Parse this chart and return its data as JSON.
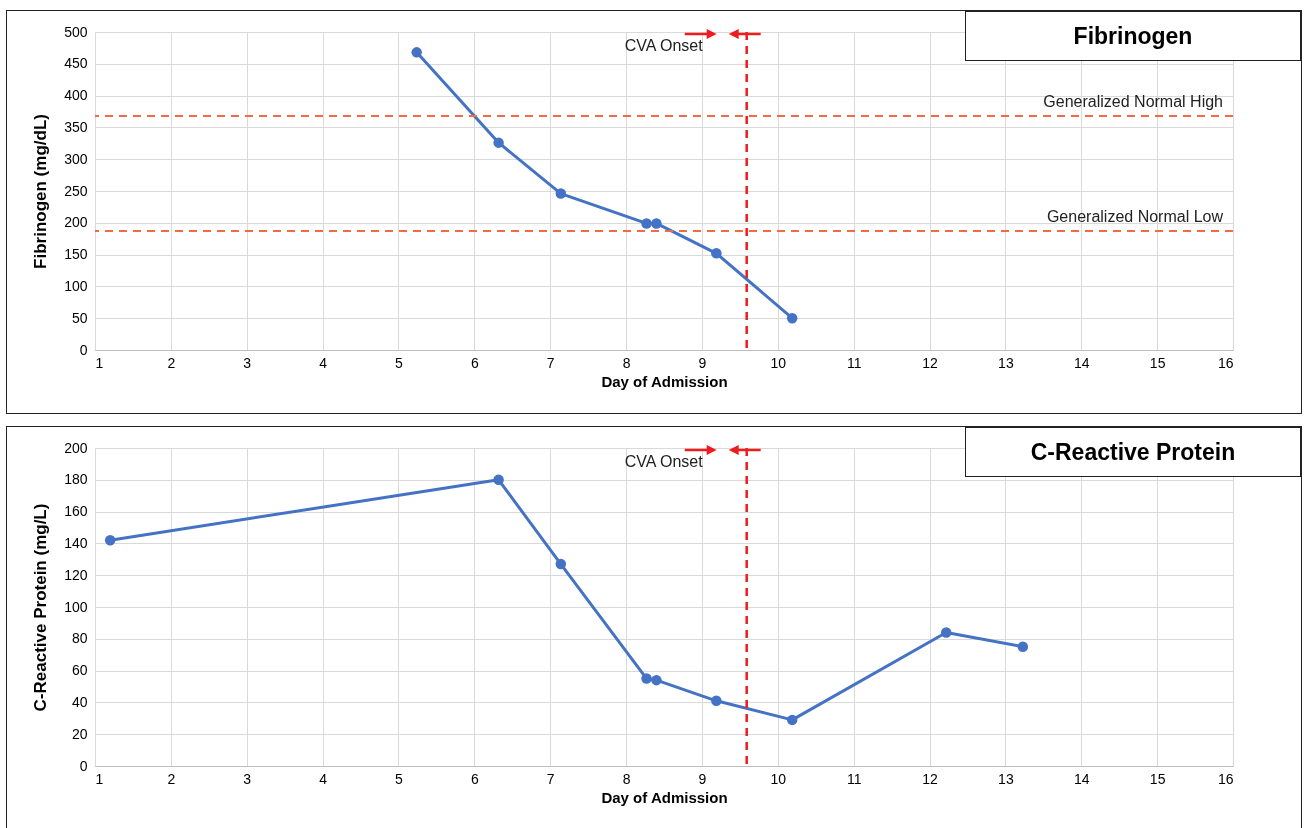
{
  "chart_data": [
    {
      "type": "line",
      "title": "Fibrinogen",
      "xlabel": "Day of Admission",
      "ylabel": "Fibrinogen (mg/dL)",
      "marker": "circle",
      "line_style": "solid",
      "grid": true,
      "x": [
        5.24,
        6.32,
        7.14,
        8.27,
        8.4,
        9.19,
        10.19
      ],
      "series": [
        {
          "color": "#4472c4",
          "values": [
            468,
            326,
            246,
            199,
            199,
            152,
            50
          ]
        }
      ],
      "xlim": [
        1,
        16
      ],
      "xticks": [
        1,
        2,
        3,
        4,
        5,
        6,
        7,
        8,
        9,
        10,
        11,
        12,
        13,
        14,
        15,
        16
      ],
      "ylim": [
        0,
        500
      ],
      "yticks": [
        0,
        50,
        100,
        150,
        200,
        250,
        300,
        350,
        400,
        450,
        500
      ],
      "ref_lines": [
        {
          "axis": "y",
          "value": 368,
          "label": "Generalized Normal High",
          "color": "#f26b43",
          "line_style": "dashed"
        },
        {
          "axis": "y",
          "value": 187,
          "label": "Generalized Normal Low",
          "color": "#f26b43",
          "line_style": "dashed"
        },
        {
          "axis": "x",
          "value": 9.59,
          "label": "CVA Onset",
          "color": "#ee1c1c",
          "line_style": "dashed"
        }
      ]
    },
    {
      "type": "line",
      "title": "C-Reactive Protein",
      "xlabel": "Day of Admission",
      "ylabel": "C-Reactive Protein (mg/L)",
      "marker": "circle",
      "line_style": "solid",
      "grid": true,
      "x": [
        1.2,
        6.32,
        7.14,
        8.27,
        8.4,
        9.19,
        10.19,
        12.22,
        13.23
      ],
      "series": [
        {
          "color": "#4472c4",
          "values": [
            142,
            180,
            127,
            55,
            54,
            41,
            29,
            84,
            75
          ]
        }
      ],
      "xlim": [
        1,
        16
      ],
      "xticks": [
        1,
        2,
        3,
        4,
        5,
        6,
        7,
        8,
        9,
        10,
        11,
        12,
        13,
        14,
        15,
        16
      ],
      "ylim": [
        0,
        200
      ],
      "yticks": [
        0,
        20,
        40,
        60,
        80,
        100,
        120,
        140,
        160,
        180,
        200
      ],
      "ref_lines": [
        {
          "axis": "x",
          "value": 9.59,
          "label": "CVA Onset",
          "color": "#ee1c1c",
          "line_style": "dashed"
        }
      ]
    }
  ]
}
